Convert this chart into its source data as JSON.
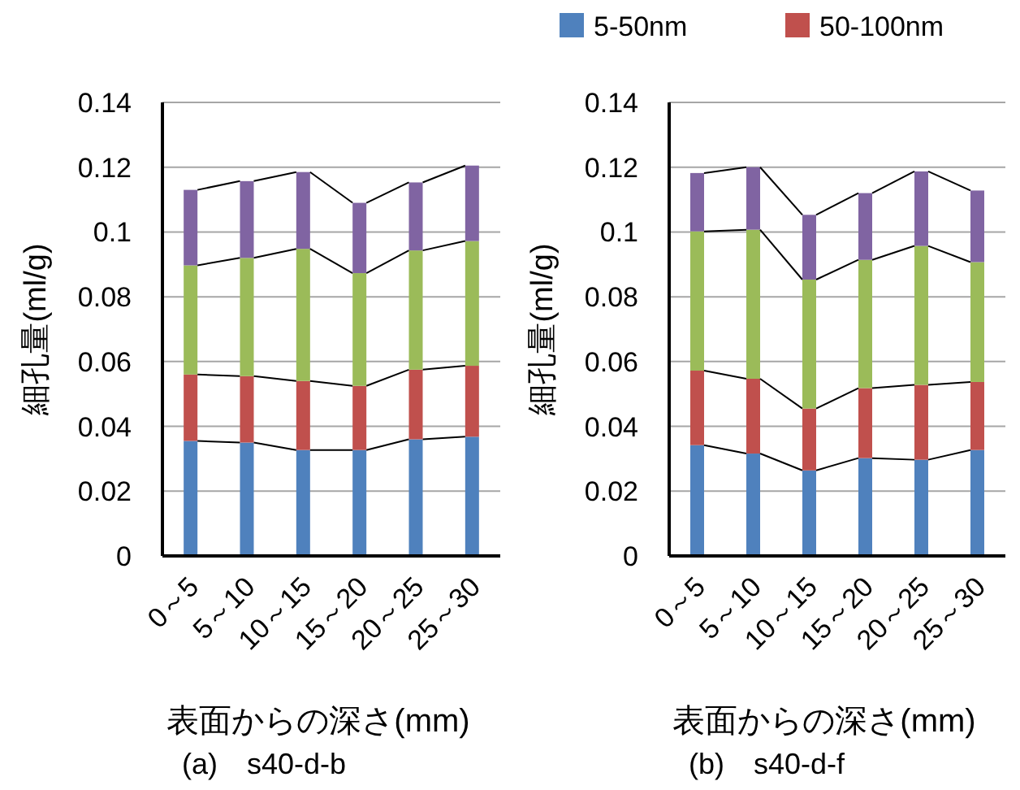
{
  "chart_data": [
    {
      "type": "bar",
      "stacked": true,
      "title": "(a)　s40-d-b",
      "xlabel": "表面からの深さ(mm)",
      "ylabel": "細孔量(ml/g)",
      "categories": [
        "0～5",
        "5～10",
        "10～15",
        "15～20",
        "20～25",
        "25～30"
      ],
      "ylim": [
        0,
        0.14
      ],
      "yticks": [
        0,
        0.02,
        0.04,
        0.06,
        0.08,
        0.1,
        0.12,
        0.14
      ],
      "grid": "y",
      "series": [
        {
          "color": "#4f81bd",
          "values": [
            0.0355,
            0.035,
            0.0327,
            0.0327,
            0.036,
            0.0368
          ]
        },
        {
          "color": "#c0504d",
          "values": [
            0.0205,
            0.0205,
            0.0213,
            0.0198,
            0.0215,
            0.0219
          ]
        },
        {
          "color": "#9bbb59",
          "values": [
            0.0337,
            0.0365,
            0.0408,
            0.0348,
            0.0368,
            0.0385
          ]
        },
        {
          "color": "#8064a2",
          "values": [
            0.0233,
            0.0237,
            0.0237,
            0.0217,
            0.021,
            0.0233
          ]
        }
      ]
    },
    {
      "type": "bar",
      "stacked": true,
      "title": "(b)　s40-d-f",
      "xlabel": "表面からの深さ(mm)",
      "ylabel": "細孔量(ml/g)",
      "categories": [
        "0～5",
        "5～10",
        "10～15",
        "15～20",
        "20～25",
        "25～30"
      ],
      "ylim": [
        0,
        0.14
      ],
      "yticks": [
        0,
        0.02,
        0.04,
        0.06,
        0.08,
        0.1,
        0.12,
        0.14
      ],
      "grid": "y",
      "legend": "top",
      "series": [
        {
          "name": "5-50nm",
          "color": "#4f81bd",
          "values": [
            0.0342,
            0.0316,
            0.0264,
            0.0302,
            0.0297,
            0.0327
          ]
        },
        {
          "name": "50-100nm",
          "color": "#c0504d",
          "values": [
            0.023,
            0.0231,
            0.0191,
            0.0216,
            0.0231,
            0.021
          ]
        },
        {
          "color": "#9bbb59",
          "values": [
            0.043,
            0.046,
            0.0398,
            0.0396,
            0.0429,
            0.037
          ]
        },
        {
          "color": "#8064a2",
          "values": [
            0.018,
            0.0193,
            0.02,
            0.0206,
            0.023,
            0.0221
          ]
        }
      ]
    }
  ]
}
